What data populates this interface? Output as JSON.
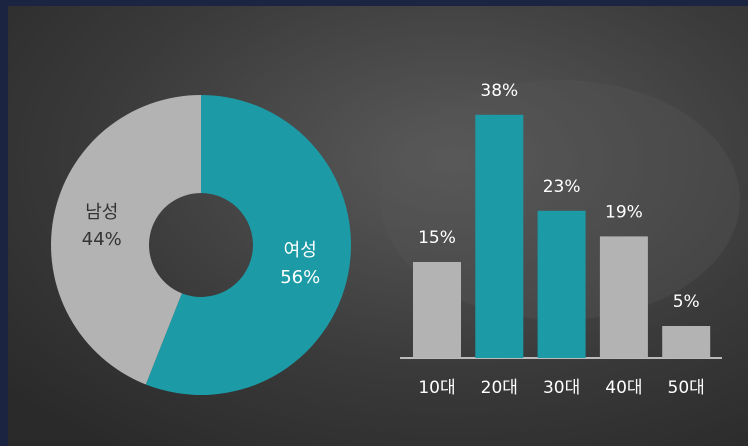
{
  "chart_data": [
    {
      "type": "pie",
      "categories": [
        "여성",
        "남성"
      ],
      "values": [
        56,
        44
      ],
      "value_labels": [
        "56%",
        "44%"
      ],
      "colors": [
        "#1c9ba6",
        "#b3b3b3"
      ],
      "label_colors": [
        "#ffffff",
        "#333333"
      ]
    },
    {
      "type": "bar",
      "categories": [
        "10대",
        "20대",
        "30대",
        "40대",
        "50대"
      ],
      "values": [
        15,
        38,
        23,
        19,
        5
      ],
      "value_labels": [
        "15%",
        "38%",
        "23%",
        "19%",
        "5%"
      ],
      "colors": [
        "#b3b3b3",
        "#1c9ba6",
        "#1c9ba6",
        "#b3b3b3",
        "#b3b3b3"
      ]
    }
  ]
}
